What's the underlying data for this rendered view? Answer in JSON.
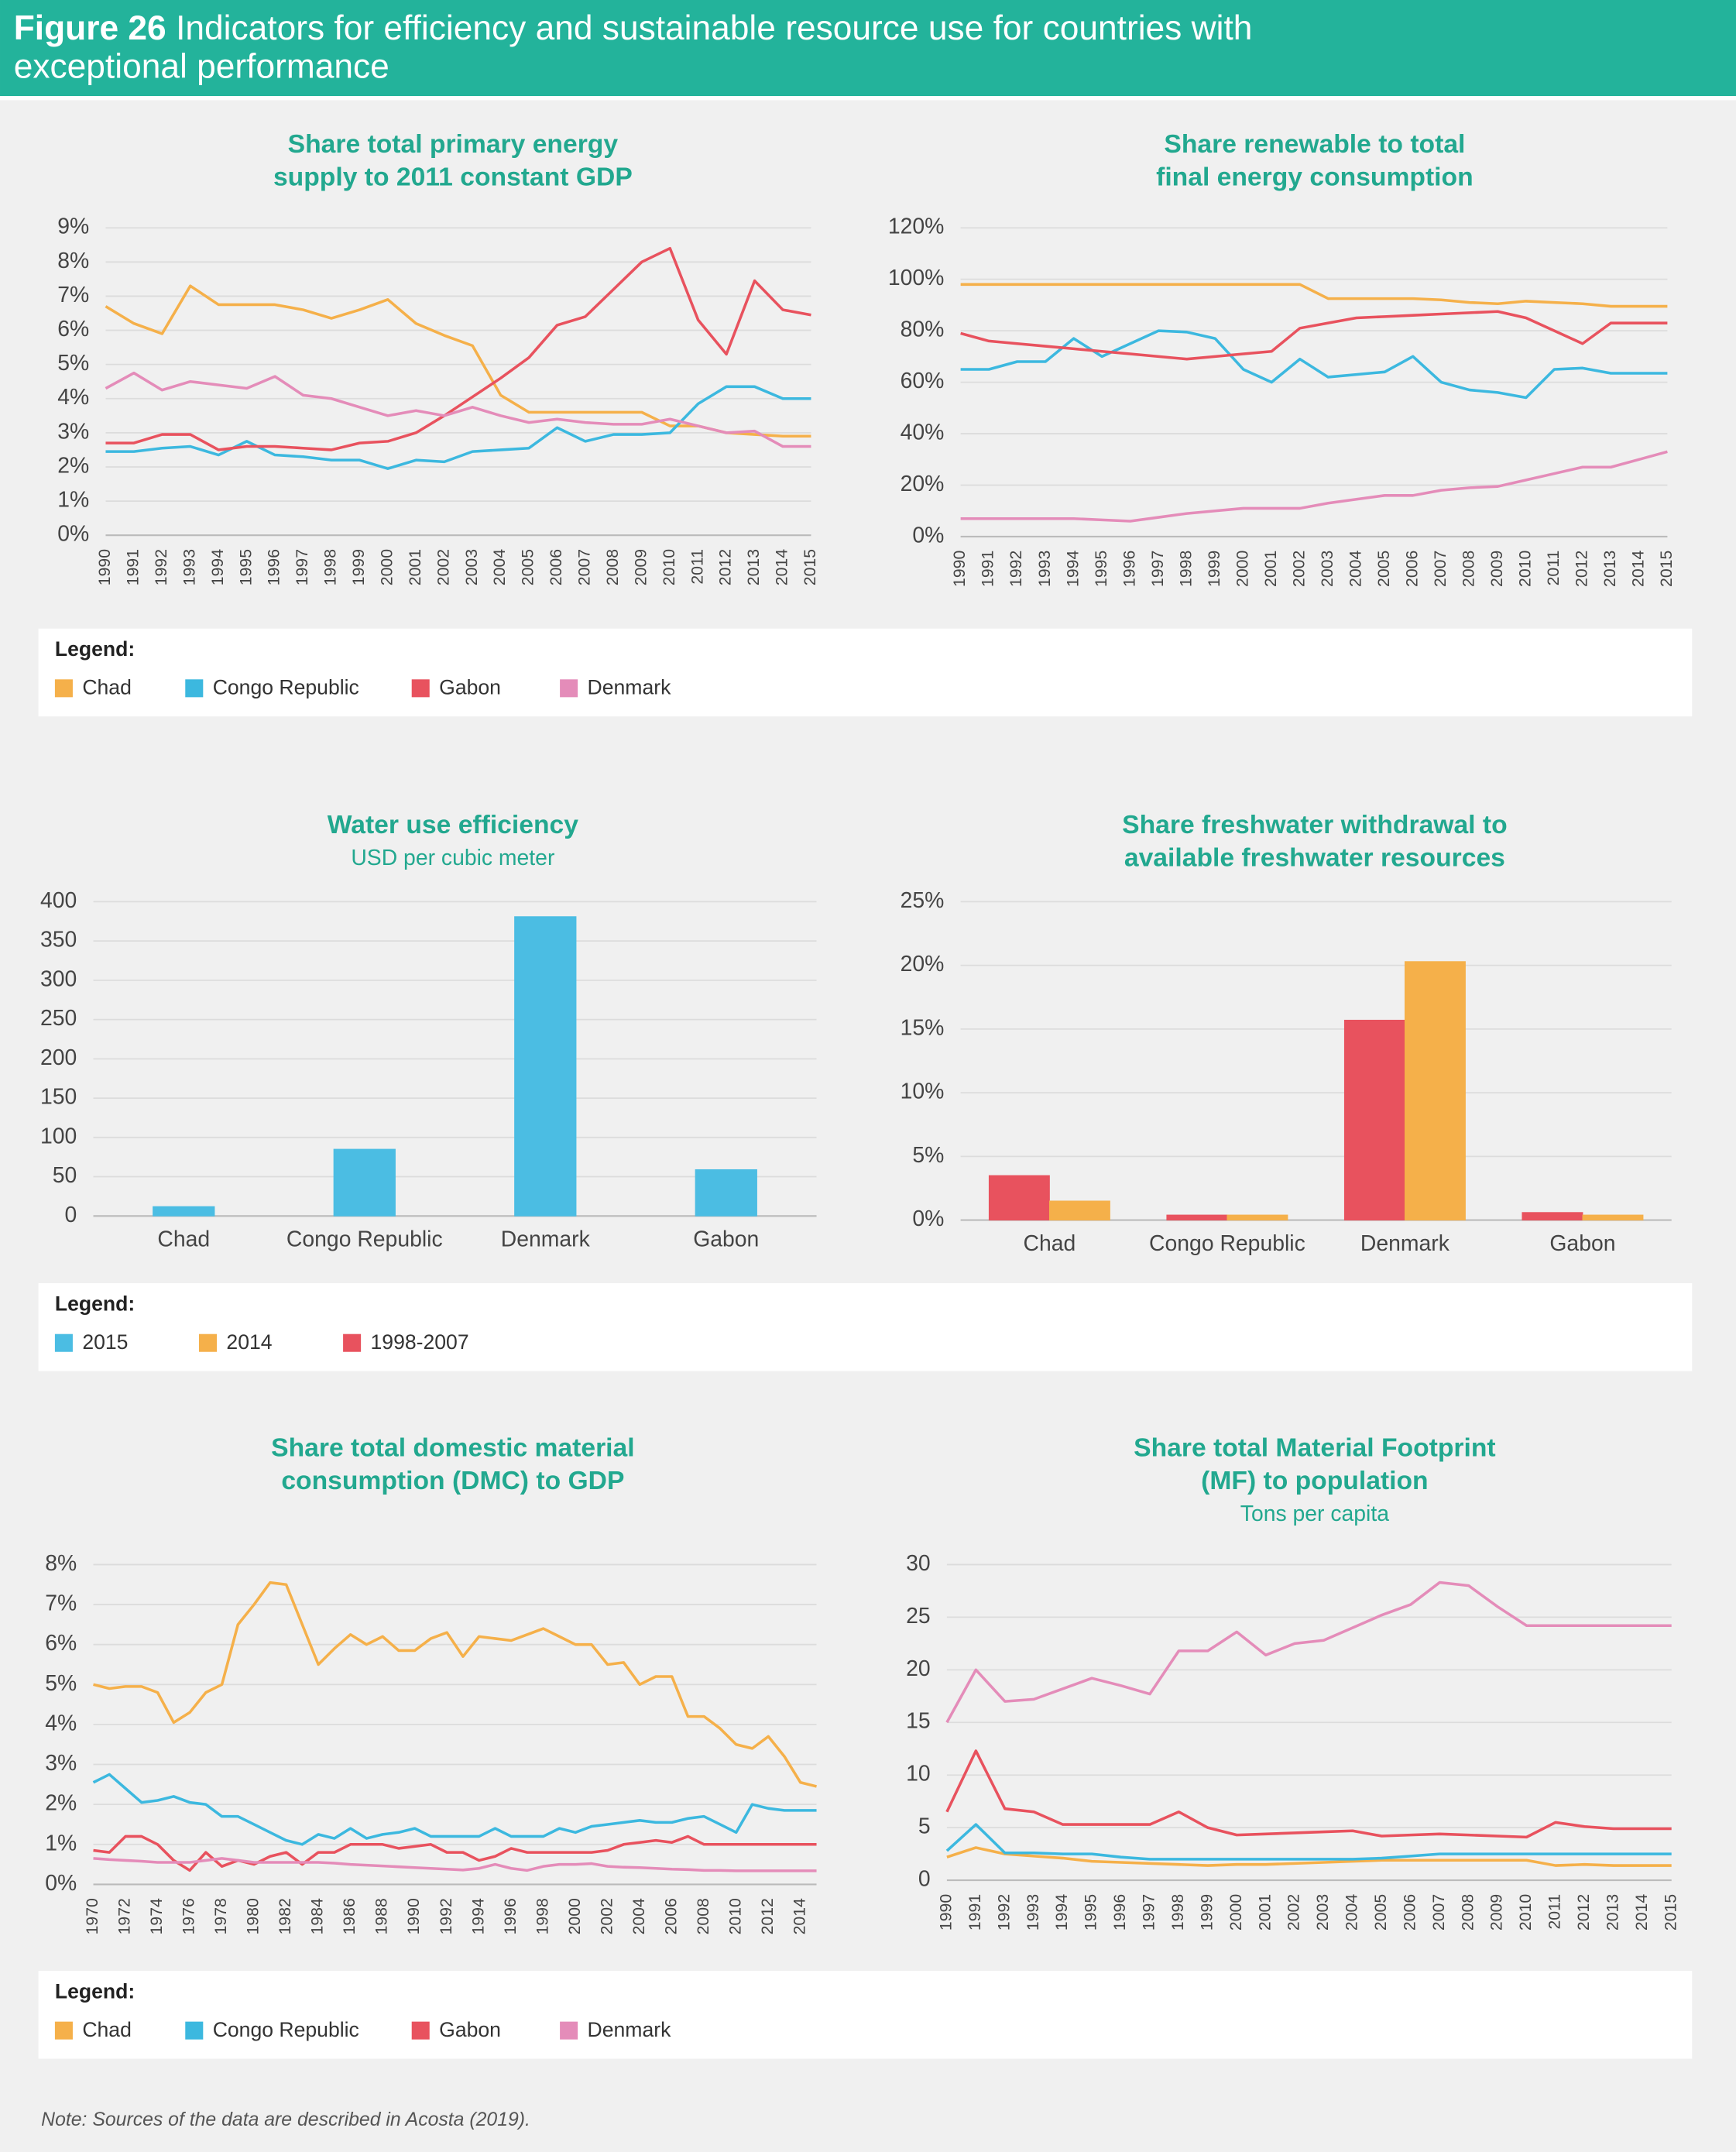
{
  "header": {
    "figure": "Figure 26",
    "title": [
      "Indicators for efficiency and sustainable resource use for countries with",
      "exceptional performance"
    ]
  },
  "legends": [
    "Legend:",
    "Legend:",
    "Legend:"
  ],
  "note": "Note: Sources of the data are described in Acosta (2019).",
  "chart_data": [
    {
      "type": "line",
      "title": [
        "Share total primary energy",
        "supply to 2011 constant GDP"
      ],
      "categories": [
        "1990",
        "1991",
        "1992",
        "1993",
        "1994",
        "1995",
        "1996",
        "1997",
        "1998",
        "1999",
        "2000",
        "2001",
        "2002",
        "2003",
        "2004",
        "2005",
        "2006",
        "2007",
        "2008",
        "2009",
        "2010",
        "2011",
        "2012",
        "2013",
        "2014",
        "2015"
      ],
      "ylim": [
        0,
        9
      ],
      "yticks": [
        {
          "value": 0,
          "label": "0%"
        },
        {
          "value": 1,
          "label": "1%"
        },
        {
          "value": 2,
          "label": "2%"
        },
        {
          "value": 3,
          "label": "3%"
        },
        {
          "value": 4,
          "label": "4%"
        },
        {
          "value": 5,
          "label": "5%"
        },
        {
          "value": 6,
          "label": "6%"
        },
        {
          "value": 7,
          "label": "7%"
        },
        {
          "value": 8,
          "label": "8%"
        },
        {
          "value": 9,
          "label": "9%"
        }
      ],
      "grid": true,
      "series": [
        {
          "name": "Chad",
          "color": "#f5b04a",
          "values": [
            6.7,
            6.2,
            5.9,
            7.3,
            6.75,
            6.75,
            6.75,
            6.6,
            6.35,
            6.6,
            6.9,
            6.2,
            5.85,
            5.55,
            4.1,
            3.6,
            3.6,
            3.6,
            3.6,
            3.6,
            3.2,
            3.2,
            3.0,
            2.95,
            2.9,
            2.9
          ]
        },
        {
          "name": "Congo Republic",
          "color": "#3cb8df",
          "values": [
            2.45,
            2.45,
            2.55,
            2.6,
            2.35,
            2.75,
            2.35,
            2.3,
            2.2,
            2.2,
            1.95,
            2.2,
            2.15,
            2.45,
            2.5,
            2.55,
            3.15,
            2.75,
            2.95,
            2.95,
            3.0,
            3.85,
            4.35,
            4.35,
            4.0,
            4.0
          ]
        },
        {
          "name": "Gabon",
          "color": "#e8525e",
          "values": [
            2.7,
            2.7,
            2.95,
            2.95,
            2.5,
            2.6,
            2.6,
            2.55,
            2.5,
            2.7,
            2.75,
            3.0,
            3.5,
            4.05,
            4.6,
            5.2,
            6.15,
            6.4,
            7.2,
            8.0,
            8.4,
            6.3,
            5.3,
            7.45,
            6.6,
            6.45
          ]
        },
        {
          "name": "Denmark",
          "color": "#e48cb9",
          "values": [
            4.3,
            4.75,
            4.25,
            4.5,
            4.4,
            4.3,
            4.65,
            4.1,
            4.0,
            3.75,
            3.5,
            3.65,
            3.5,
            3.75,
            3.5,
            3.3,
            3.4,
            3.3,
            3.25,
            3.25,
            3.4,
            3.2,
            3.0,
            3.05,
            2.6,
            2.6
          ]
        }
      ]
    },
    {
      "type": "line",
      "title": [
        "Share renewable to total",
        "final energy consumption"
      ],
      "categories": [
        "1990",
        "1991",
        "1992",
        "1993",
        "1994",
        "1995",
        "1996",
        "1997",
        "1998",
        "1999",
        "2000",
        "2001",
        "2002",
        "2003",
        "2004",
        "2005",
        "2006",
        "2007",
        "2008",
        "2009",
        "2010",
        "2011",
        "2012",
        "2013",
        "2014",
        "2015"
      ],
      "ylim": [
        0,
        120
      ],
      "yticks": [
        {
          "value": 0,
          "label": "0%"
        },
        {
          "value": 20,
          "label": "20%"
        },
        {
          "value": 40,
          "label": "40%"
        },
        {
          "value": 60,
          "label": "60%"
        },
        {
          "value": 80,
          "label": "80%"
        },
        {
          "value": 100,
          "label": "100%"
        },
        {
          "value": 120,
          "label": "120%"
        }
      ],
      "grid": true,
      "series": [
        {
          "name": "Chad",
          "color": "#f5b04a",
          "values": [
            98,
            98,
            98,
            98,
            98,
            98,
            98,
            98,
            98,
            98,
            98,
            98,
            98,
            92.5,
            92.5,
            92.5,
            92.5,
            92,
            91,
            90.5,
            91.5,
            91,
            90.5,
            89.5,
            89.5,
            89.5
          ]
        },
        {
          "name": "Congo Republic",
          "color": "#3cb8df",
          "values": [
            65,
            65,
            68,
            68,
            77,
            70,
            75,
            80,
            79.5,
            77,
            65,
            60,
            69,
            62,
            63,
            64,
            70,
            60,
            57,
            56,
            54,
            65,
            65.5,
            63.5,
            63.5,
            63.5
          ]
        },
        {
          "name": "Gabon",
          "color": "#e8525e",
          "values": [
            79,
            76,
            75,
            74,
            73,
            72,
            71,
            70,
            69,
            70,
            71,
            72,
            81,
            83,
            85,
            85.5,
            86,
            86.5,
            87,
            87.5,
            85,
            80,
            75,
            83,
            83,
            83
          ]
        },
        {
          "name": "Denmark",
          "color": "#e48cb9",
          "values": [
            7,
            7,
            7,
            7,
            7,
            6.5,
            6,
            7.5,
            9,
            10,
            11,
            11,
            11,
            13,
            14.5,
            16,
            16,
            18,
            19,
            19.5,
            22,
            24.5,
            27,
            27,
            30,
            33
          ]
        }
      ]
    },
    {
      "type": "bar",
      "title": [
        "Water use efficiency"
      ],
      "subtitle": "USD per cubic meter",
      "categories": [
        "Chad",
        "Congo Republic",
        "Denmark",
        "Gabon"
      ],
      "ylim": [
        0,
        400
      ],
      "yticks": [
        0,
        50,
        100,
        150,
        200,
        250,
        300,
        350,
        400
      ],
      "grid": true,
      "series": [
        {
          "name": "2015",
          "color": "#4bbde3",
          "values": [
            12,
            85,
            381,
            59
          ]
        }
      ]
    },
    {
      "type": "bar",
      "title": [
        "Share freshwater withdrawal to",
        "available freshwater resources"
      ],
      "categories": [
        "Chad",
        "Congo Republic",
        "Denmark",
        "Gabon"
      ],
      "ylim": [
        0,
        25
      ],
      "yticks": [
        {
          "value": 0,
          "label": "0%"
        },
        {
          "value": 5,
          "label": "5%"
        },
        {
          "value": 10,
          "label": "10%"
        },
        {
          "value": 15,
          "label": "15%"
        },
        {
          "value": 20,
          "label": "20%"
        },
        {
          "value": 25,
          "label": "25%"
        }
      ],
      "grid": true,
      "series": [
        {
          "name": "1998-2007",
          "color": "#e8525e",
          "values": [
            3.5,
            0.4,
            15.7,
            0.6
          ]
        },
        {
          "name": "2014",
          "color": "#f5b04a",
          "values": [
            1.5,
            0.4,
            20.3,
            0.4
          ]
        }
      ]
    },
    {
      "type": "line",
      "title": [
        "Share total domestic material",
        "consumption (DMC) to GDP"
      ],
      "x": [
        1970,
        1971,
        1972,
        1973,
        1974,
        1975,
        1976,
        1977,
        1978,
        1979,
        1980,
        1981,
        1982,
        1983,
        1984,
        1985,
        1986,
        1987,
        1988,
        1989,
        1990,
        1991,
        1992,
        1993,
        1994,
        1995,
        1996,
        1997,
        1998,
        1999,
        2000,
        2001,
        2002,
        2003,
        2004,
        2005,
        2006,
        2007,
        2008,
        2009,
        2010,
        2011,
        2012,
        2013,
        2014,
        2015
      ],
      "xlim": [
        1970,
        2015
      ],
      "xticks": [
        1970,
        1972,
        1974,
        1976,
        1978,
        1980,
        1982,
        1984,
        1986,
        1988,
        1990,
        1992,
        1994,
        1996,
        1998,
        2000,
        2002,
        2004,
        2006,
        2008,
        2010,
        2012,
        2014
      ],
      "ylim": [
        0,
        8
      ],
      "yticks": [
        {
          "value": 0,
          "label": "0%"
        },
        {
          "value": 1,
          "label": "1%"
        },
        {
          "value": 2,
          "label": "2%"
        },
        {
          "value": 3,
          "label": "3%"
        },
        {
          "value": 4,
          "label": "4%"
        },
        {
          "value": 5,
          "label": "5%"
        },
        {
          "value": 6,
          "label": "6%"
        },
        {
          "value": 7,
          "label": "7%"
        },
        {
          "value": 8,
          "label": "8%"
        }
      ],
      "grid": true,
      "series": [
        {
          "name": "Chad",
          "color": "#f5b04a",
          "values": [
            5.0,
            4.9,
            4.95,
            4.95,
            4.8,
            4.05,
            4.3,
            4.8,
            5.0,
            6.5,
            7.0,
            7.55,
            7.5,
            6.5,
            5.5,
            5.9,
            6.25,
            6.0,
            6.2,
            5.85,
            5.85,
            6.15,
            6.3,
            5.7,
            6.2,
            6.15,
            6.1,
            6.25,
            6.4,
            6.2,
            6.0,
            6.0,
            5.5,
            5.55,
            5.0,
            5.2,
            5.2,
            4.2,
            4.2,
            3.9,
            3.5,
            3.4,
            3.7,
            3.2,
            2.55,
            2.45
          ]
        },
        {
          "name": "Congo Republic",
          "color": "#3cb8df",
          "values": [
            2.55,
            2.75,
            2.4,
            2.05,
            2.1,
            2.2,
            2.05,
            2.0,
            1.7,
            1.7,
            1.5,
            1.3,
            1.1,
            1.0,
            1.25,
            1.15,
            1.4,
            1.15,
            1.25,
            1.3,
            1.4,
            1.2,
            1.2,
            1.2,
            1.2,
            1.4,
            1.2,
            1.2,
            1.2,
            1.4,
            1.3,
            1.45,
            1.5,
            1.55,
            1.6,
            1.55,
            1.55,
            1.65,
            1.7,
            1.5,
            1.3,
            2.0,
            1.9,
            1.85,
            1.85,
            1.85
          ]
        },
        {
          "name": "Gabon",
          "color": "#e8525e",
          "values": [
            0.85,
            0.8,
            1.2,
            1.2,
            1.0,
            0.6,
            0.35,
            0.8,
            0.45,
            0.6,
            0.5,
            0.7,
            0.8,
            0.5,
            0.8,
            0.8,
            1.0,
            1.0,
            1.0,
            0.9,
            0.95,
            1.0,
            0.8,
            0.8,
            0.6,
            0.7,
            0.9,
            0.8,
            0.8,
            0.8,
            0.8,
            0.8,
            0.85,
            1.0,
            1.05,
            1.1,
            1.05,
            1.2,
            1.0,
            1.0,
            1.0,
            1.0,
            1.0,
            1.0,
            1.0,
            1.0
          ]
        },
        {
          "name": "Denmark",
          "color": "#e48cb9",
          "values": [
            0.65,
            0.62,
            0.6,
            0.58,
            0.55,
            0.55,
            0.55,
            0.6,
            0.65,
            0.6,
            0.55,
            0.55,
            0.55,
            0.55,
            0.55,
            0.53,
            0.5,
            0.48,
            0.46,
            0.44,
            0.42,
            0.4,
            0.38,
            0.36,
            0.4,
            0.5,
            0.4,
            0.35,
            0.45,
            0.5,
            0.5,
            0.52,
            0.45,
            0.43,
            0.42,
            0.4,
            0.38,
            0.37,
            0.35,
            0.35,
            0.34,
            0.34,
            0.34,
            0.34,
            0.34,
            0.34
          ]
        }
      ]
    },
    {
      "type": "line",
      "title": [
        "Share total Material Footprint",
        "(MF) to population"
      ],
      "subtitle": "Tons per capita",
      "categories": [
        "1990",
        "1991",
        "1992",
        "1993",
        "1994",
        "1995",
        "1996",
        "1997",
        "1998",
        "1999",
        "2000",
        "2001",
        "2002",
        "2003",
        "2004",
        "2005",
        "2006",
        "2007",
        "2008",
        "2009",
        "2010",
        "2011",
        "2012",
        "2013",
        "2014",
        "2015"
      ],
      "ylim": [
        0,
        30
      ],
      "yticks": [
        0,
        5,
        10,
        15,
        20,
        25,
        30
      ],
      "grid": true,
      "series": [
        {
          "name": "Chad",
          "color": "#f5b04a",
          "values": [
            2.2,
            3.1,
            2.5,
            2.3,
            2.1,
            1.8,
            1.7,
            1.6,
            1.5,
            1.4,
            1.5,
            1.5,
            1.6,
            1.7,
            1.8,
            1.9,
            1.9,
            1.9,
            1.9,
            1.9,
            1.9,
            1.4,
            1.5,
            1.4,
            1.4,
            1.4
          ]
        },
        {
          "name": "Congo Republic",
          "color": "#3cb8df",
          "values": [
            2.8,
            5.3,
            2.6,
            2.6,
            2.5,
            2.5,
            2.2,
            2.0,
            2.0,
            2.0,
            2.0,
            2.0,
            2.0,
            2.0,
            2.0,
            2.1,
            2.3,
            2.5,
            2.5,
            2.5,
            2.5,
            2.5,
            2.5,
            2.5,
            2.5,
            2.5
          ]
        },
        {
          "name": "Gabon",
          "color": "#e8525e",
          "values": [
            6.5,
            12.3,
            6.8,
            6.5,
            5.3,
            5.3,
            5.3,
            5.3,
            6.5,
            5.0,
            4.3,
            4.4,
            4.5,
            4.6,
            4.7,
            4.2,
            4.3,
            4.4,
            4.3,
            4.2,
            4.1,
            5.5,
            5.1,
            4.9,
            4.9,
            4.9
          ]
        },
        {
          "name": "Denmark",
          "color": "#e48cb9",
          "values": [
            15,
            20,
            17,
            17.2,
            18.2,
            19.2,
            18.5,
            17.7,
            21.8,
            21.8,
            23.6,
            21.4,
            22.5,
            22.8,
            24,
            25.2,
            26.2,
            28.3,
            28,
            26,
            24.2,
            24.2,
            24.2,
            24.2,
            24.2,
            24.2
          ]
        }
      ]
    }
  ]
}
